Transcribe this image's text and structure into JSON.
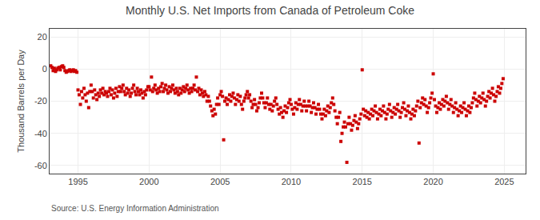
{
  "chart_data": {
    "type": "scatter",
    "title": "Monthly U.S. Net Imports from Canada of Petroleum Coke",
    "ylabel": "Thousand Barrels per Day",
    "annotations": [
      "Source: U.S. Energy Information Administration"
    ],
    "color": "#cc0000",
    "marker": "square",
    "grid": true,
    "xlim": [
      1993.0,
      2026.5
    ],
    "xticks": [
      1995,
      2000,
      2005,
      2010,
      2015,
      2020,
      2025
    ],
    "ylim": [
      -65,
      25
    ],
    "yticks": [
      -60,
      -40,
      -20,
      0,
      20
    ],
    "x": [
      1993.08,
      1993.17,
      1993.25,
      1993.33,
      1993.42,
      1993.5,
      1993.58,
      1993.67,
      1993.75,
      1993.83,
      1993.92,
      1994.0,
      1994.08,
      1994.17,
      1994.25,
      1994.33,
      1994.42,
      1994.5,
      1994.58,
      1994.67,
      1994.75,
      1994.83,
      1994.92,
      1995.0,
      1995.08,
      1995.17,
      1995.25,
      1995.33,
      1995.42,
      1995.5,
      1995.58,
      1995.67,
      1995.75,
      1995.83,
      1995.92,
      1996.0,
      1996.08,
      1996.17,
      1996.25,
      1996.33,
      1996.42,
      1996.5,
      1996.58,
      1996.67,
      1996.75,
      1996.83,
      1996.92,
      1997.0,
      1997.08,
      1997.17,
      1997.25,
      1997.33,
      1997.42,
      1997.5,
      1997.58,
      1997.67,
      1997.75,
      1997.83,
      1997.92,
      1998.0,
      1998.08,
      1998.17,
      1998.25,
      1998.33,
      1998.42,
      1998.5,
      1998.58,
      1998.67,
      1998.75,
      1998.83,
      1998.92,
      1999.0,
      1999.08,
      1999.17,
      1999.25,
      1999.33,
      1999.42,
      1999.5,
      1999.58,
      1999.67,
      1999.75,
      1999.83,
      1999.92,
      2000.0,
      2000.08,
      2000.17,
      2000.25,
      2000.33,
      2000.42,
      2000.5,
      2000.58,
      2000.67,
      2000.75,
      2000.83,
      2000.92,
      2001.0,
      2001.08,
      2001.17,
      2001.25,
      2001.33,
      2001.42,
      2001.5,
      2001.58,
      2001.67,
      2001.75,
      2001.83,
      2001.92,
      2002.0,
      2002.08,
      2002.17,
      2002.25,
      2002.33,
      2002.42,
      2002.5,
      2002.58,
      2002.67,
      2002.75,
      2002.83,
      2002.92,
      2003.0,
      2003.08,
      2003.17,
      2003.25,
      2003.33,
      2003.42,
      2003.5,
      2003.58,
      2003.67,
      2003.75,
      2003.83,
      2003.92,
      2004.0,
      2004.08,
      2004.17,
      2004.25,
      2004.33,
      2004.42,
      2004.5,
      2004.58,
      2004.67,
      2004.75,
      2004.83,
      2004.92,
      2005.0,
      2005.08,
      2005.17,
      2005.25,
      2005.33,
      2005.42,
      2005.5,
      2005.58,
      2005.67,
      2005.75,
      2005.83,
      2005.92,
      2006.0,
      2006.08,
      2006.17,
      2006.25,
      2006.33,
      2006.42,
      2006.5,
      2006.58,
      2006.67,
      2006.75,
      2006.83,
      2006.92,
      2007.0,
      2007.08,
      2007.17,
      2007.25,
      2007.33,
      2007.42,
      2007.5,
      2007.58,
      2007.67,
      2007.75,
      2007.83,
      2007.92,
      2008.0,
      2008.08,
      2008.17,
      2008.25,
      2008.33,
      2008.42,
      2008.5,
      2008.58,
      2008.67,
      2008.75,
      2008.83,
      2008.92,
      2009.0,
      2009.08,
      2009.17,
      2009.25,
      2009.33,
      2009.42,
      2009.5,
      2009.58,
      2009.67,
      2009.75,
      2009.83,
      2009.92,
      2010.0,
      2010.08,
      2010.17,
      2010.25,
      2010.33,
      2010.42,
      2010.5,
      2010.58,
      2010.67,
      2010.75,
      2010.83,
      2010.92,
      2011.0,
      2011.08,
      2011.17,
      2011.25,
      2011.33,
      2011.42,
      2011.5,
      2011.58,
      2011.67,
      2011.75,
      2011.83,
      2011.92,
      2012.0,
      2012.08,
      2012.17,
      2012.25,
      2012.33,
      2012.42,
      2012.5,
      2012.58,
      2012.67,
      2012.75,
      2012.83,
      2012.92,
      2013.0,
      2013.08,
      2013.17,
      2013.25,
      2013.33,
      2013.42,
      2013.5,
      2013.58,
      2013.67,
      2013.75,
      2013.83,
      2013.92,
      2014.0,
      2014.08,
      2014.17,
      2014.25,
      2014.33,
      2014.42,
      2014.5,
      2014.58,
      2014.67,
      2014.75,
      2014.83,
      2014.92,
      2015.0,
      2015.08,
      2015.17,
      2015.25,
      2015.33,
      2015.42,
      2015.5,
      2015.58,
      2015.67,
      2015.75,
      2015.83,
      2015.92,
      2016.0,
      2016.08,
      2016.17,
      2016.25,
      2016.33,
      2016.42,
      2016.5,
      2016.58,
      2016.67,
      2016.75,
      2016.83,
      2016.92,
      2017.0,
      2017.08,
      2017.17,
      2017.25,
      2017.33,
      2017.42,
      2017.5,
      2017.58,
      2017.67,
      2017.75,
      2017.83,
      2017.92,
      2018.0,
      2018.08,
      2018.17,
      2018.25,
      2018.33,
      2018.42,
      2018.5,
      2018.58,
      2018.67,
      2018.75,
      2018.83,
      2018.92,
      2019.0,
      2019.08,
      2019.17,
      2019.25,
      2019.33,
      2019.42,
      2019.5,
      2019.58,
      2019.67,
      2019.75,
      2019.83,
      2019.92,
      2020.0,
      2020.08,
      2020.17,
      2020.25,
      2020.33,
      2020.42,
      2020.5,
      2020.58,
      2020.67,
      2020.75,
      2020.83,
      2020.92,
      2021.0,
      2021.08,
      2021.17,
      2021.25,
      2021.33,
      2021.42,
      2021.5,
      2021.58,
      2021.67,
      2021.75,
      2021.83,
      2021.92,
      2022.0,
      2022.08,
      2022.17,
      2022.25,
      2022.33,
      2022.42,
      2022.5,
      2022.58,
      2022.67,
      2022.75,
      2022.83,
      2022.92,
      2023.0,
      2023.08,
      2023.17,
      2023.25,
      2023.33,
      2023.42,
      2023.5,
      2023.58,
      2023.67,
      2023.75,
      2023.83,
      2023.92,
      2024.0,
      2024.08,
      2024.17,
      2024.25,
      2024.33,
      2024.42,
      2024.5,
      2024.58,
      2024.67,
      2024.75,
      2024.83,
      2024.92
    ],
    "values": [
      2.0,
      1.0,
      -1.0,
      0.5,
      -1.5,
      -0.5,
      0.5,
      1.0,
      -0.5,
      1.5,
      2.0,
      1.0,
      -1.0,
      -2.0,
      -1.5,
      -1.0,
      -0.5,
      -1.5,
      -1.0,
      -0.5,
      -1.5,
      -1.0,
      -2.0,
      -13.0,
      -16.0,
      -22.0,
      -14.0,
      -18.0,
      -12.0,
      -16.0,
      -20.0,
      -15.0,
      -24.0,
      -14.0,
      -10.0,
      -14.0,
      -18.0,
      -13.0,
      -16.0,
      -19.0,
      -15.0,
      -17.0,
      -13.0,
      -15.0,
      -12.0,
      -16.0,
      -14.0,
      -15.0,
      -17.0,
      -14.0,
      -12.0,
      -16.0,
      -13.0,
      -18.0,
      -15.0,
      -12.0,
      -17.0,
      -14.0,
      -11.0,
      -14.0,
      -12.0,
      -10.0,
      -14.0,
      -16.0,
      -12.0,
      -15.0,
      -13.0,
      -17.0,
      -15.0,
      -12.0,
      -10.0,
      -14.0,
      -16.0,
      -12.0,
      -14.0,
      -16.0,
      -13.0,
      -15.0,
      -18.0,
      -14.0,
      -16.0,
      -13.0,
      -11.0,
      -11.0,
      -13.0,
      -5.0,
      -14.0,
      -12.0,
      -10.0,
      -13.0,
      -15.0,
      -12.0,
      -14.0,
      -11.0,
      -9.0,
      -14.0,
      -12.0,
      -10.0,
      -13.0,
      -15.0,
      -11.0,
      -14.0,
      -12.0,
      -10.0,
      -13.0,
      -15.0,
      -12.0,
      -14.0,
      -16.0,
      -12.0,
      -15.0,
      -13.0,
      -11.0,
      -14.0,
      -12.0,
      -10.0,
      -13.0,
      -15.0,
      -12.0,
      -14.0,
      -12.0,
      -10.0,
      -13.0,
      -5.0,
      -14.0,
      -12.0,
      -16.0,
      -13.0,
      -15.0,
      -17.0,
      -14.0,
      -16.0,
      -20.0,
      -17.0,
      -20.0,
      -23.0,
      -26.0,
      -29.0,
      -25.0,
      -28.0,
      -22.0,
      -18.0,
      -22.0,
      -16.0,
      -14.0,
      -17.0,
      -44.0,
      -20.0,
      -18.0,
      -22.0,
      -19.0,
      -16.0,
      -20.0,
      -17.0,
      -15.0,
      -18.0,
      -22.0,
      -19.0,
      -16.0,
      -20.0,
      -17.0,
      -22.0,
      -25.0,
      -20.0,
      -18.0,
      -16.0,
      -14.0,
      -18.0,
      -16.0,
      -20.0,
      -24.0,
      -22.0,
      -19.0,
      -22.0,
      -26.0,
      -24.0,
      -21.0,
      -18.0,
      -15.0,
      -18.0,
      -21.0,
      -24.0,
      -21.0,
      -18.0,
      -22.0,
      -25.0,
      -22.0,
      -26.0,
      -23.0,
      -20.0,
      -18.0,
      -22.0,
      -25.0,
      -28.0,
      -24.0,
      -27.0,
      -30.0,
      -26.0,
      -23.0,
      -27.0,
      -24.0,
      -21.0,
      -19.0,
      -22.0,
      -25.0,
      -28.0,
      -24.0,
      -21.0,
      -25.0,
      -22.0,
      -19.0,
      -22.0,
      -26.0,
      -23.0,
      -20.0,
      -23.0,
      -26.0,
      -23.0,
      -20.0,
      -23.0,
      -27.0,
      -24.0,
      -21.0,
      -24.0,
      -28.0,
      -25.0,
      -22.0,
      -25.0,
      -28.0,
      -31.0,
      -28.0,
      -25.0,
      -29.0,
      -26.0,
      -23.0,
      -27.0,
      -24.0,
      -21.0,
      -18.0,
      -22.0,
      -26.0,
      -30.0,
      -34.0,
      -30.0,
      -27.0,
      -45.0,
      -40.0,
      -36.0,
      -33.0,
      -36.0,
      -58.0,
      -34.0,
      -30.0,
      -34.0,
      -38.0,
      -35.0,
      -32.0,
      -29.0,
      -33.0,
      -37.0,
      -34.0,
      -31.0,
      -28.0,
      -0.5,
      -25.0,
      -29.0,
      -26.0,
      -30.0,
      -27.0,
      -31.0,
      -28.0,
      -25.0,
      -29.0,
      -26.0,
      -23.0,
      -27.0,
      -31.0,
      -28.0,
      -25.0,
      -29.0,
      -26.0,
      -23.0,
      -27.0,
      -31.0,
      -28.0,
      -25.0,
      -22.0,
      -26.0,
      -30.0,
      -27.0,
      -24.0,
      -28.0,
      -25.0,
      -22.0,
      -26.0,
      -30.0,
      -27.0,
      -24.0,
      -21.0,
      -25.0,
      -29.0,
      -26.0,
      -23.0,
      -27.0,
      -31.0,
      -28.0,
      -25.0,
      -29.0,
      -26.0,
      -23.0,
      -20.0,
      -46.0,
      -24.0,
      -21.0,
      -18.0,
      -22.0,
      -19.0,
      -23.0,
      -27.0,
      -24.0,
      -21.0,
      -18.0,
      -15.0,
      -3.0,
      -19.0,
      -23.0,
      -27.0,
      -24.0,
      -21.0,
      -25.0,
      -22.0,
      -19.0,
      -23.0,
      -20.0,
      -17.0,
      -21.0,
      -25.0,
      -22.0,
      -19.0,
      -23.0,
      -27.0,
      -24.0,
      -21.0,
      -25.0,
      -29.0,
      -26.0,
      -23.0,
      -27.0,
      -24.0,
      -21.0,
      -25.0,
      -29.0,
      -26.0,
      -23.0,
      -27.0,
      -24.0,
      -21.0,
      -18.0,
      -15.0,
      -19.0,
      -23.0,
      -20.0,
      -17.0,
      -21.0,
      -18.0,
      -15.0,
      -19.0,
      -23.0,
      -20.0,
      -17.0,
      -14.0,
      -18.0,
      -15.0,
      -12.0,
      -16.0,
      -20.0,
      -17.0,
      -14.0,
      -11.0,
      -15.0,
      -12.0,
      -9.0,
      -6.0
    ]
  }
}
